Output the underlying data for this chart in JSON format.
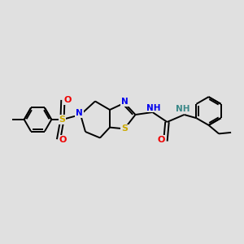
{
  "bg_color": "#e0e0e0",
  "atom_colors": {
    "C": "#000000",
    "N": "#0000ee",
    "O": "#ee0000",
    "S": "#ccaa00",
    "H": "#3a8888"
  },
  "bond_color": "#000000",
  "figsize": [
    3.0,
    3.0
  ],
  "dpi": 100,
  "xlim": [
    0,
    10
  ],
  "ylim": [
    0,
    10
  ]
}
